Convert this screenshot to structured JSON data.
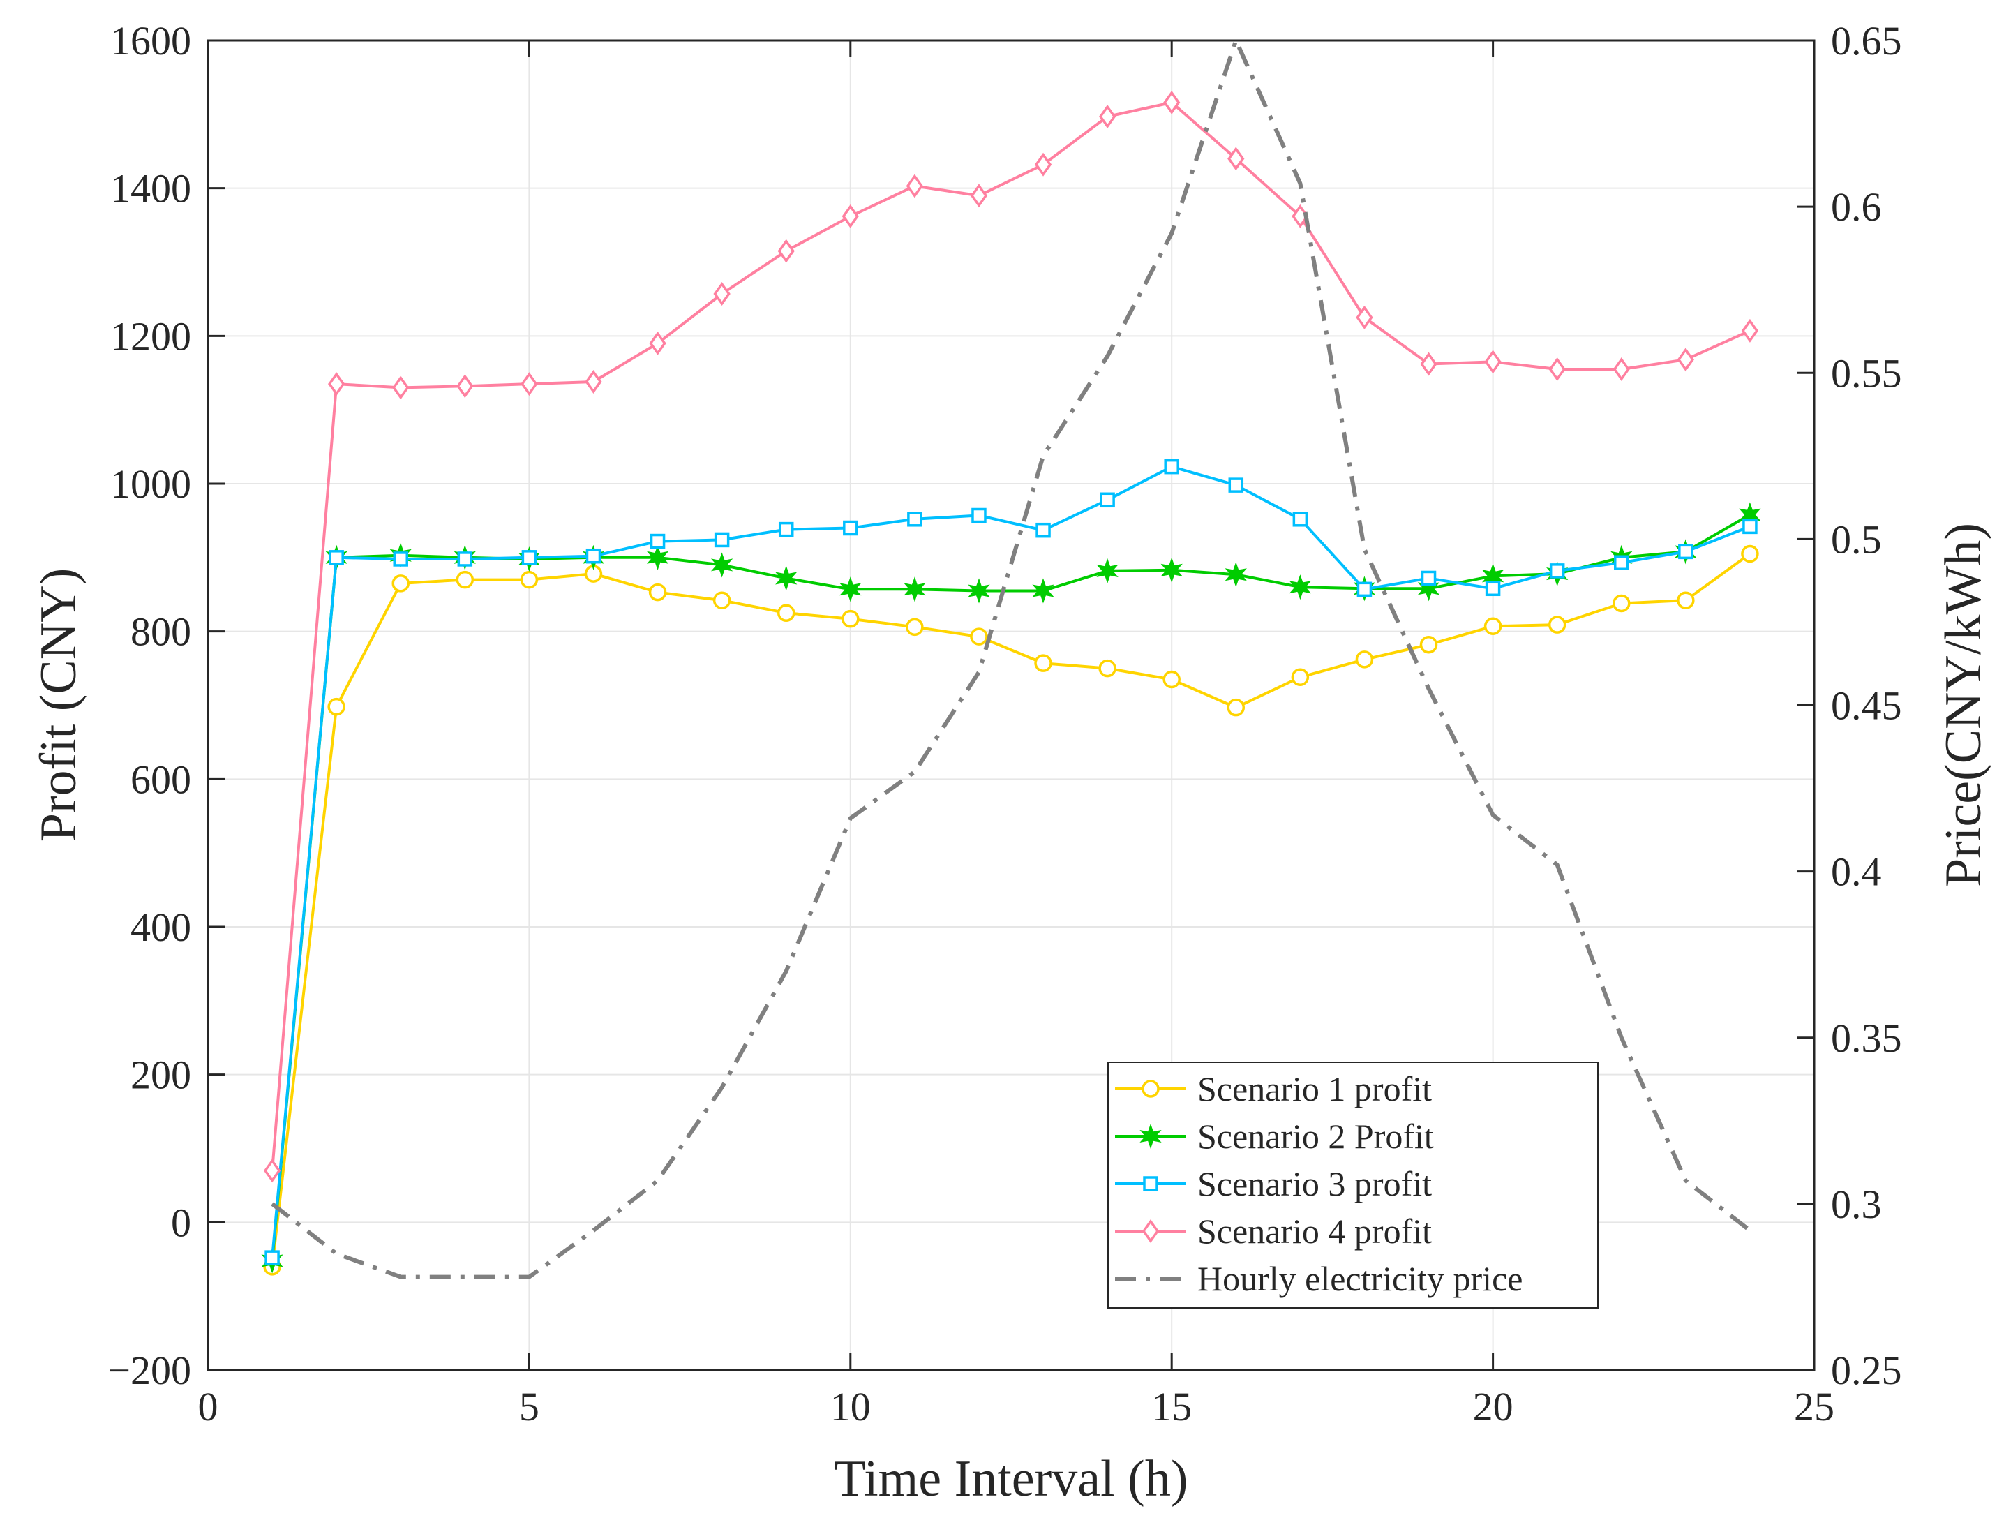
{
  "chart_data": {
    "type": "line",
    "title": "",
    "xlabel": "Time Interval (h)",
    "ylabel_left": "Profit (CNY)",
    "ylabel_right": "Price(CNY/kWh)",
    "xlim": [
      0,
      25
    ],
    "ylim_left": [
      -200,
      1600
    ],
    "ylim_right": [
      0.25,
      0.65
    ],
    "xticks": [
      "0",
      "5",
      "10",
      "15",
      "20",
      "25"
    ],
    "yticks_left": [
      "−200",
      "0",
      "200",
      "400",
      "600",
      "800",
      "1000",
      "1200",
      "1400",
      "1600"
    ],
    "yticks_right": [
      "0.25",
      "0.3",
      "0.35",
      "0.4",
      "0.45",
      "0.5",
      "0.55",
      "0.6",
      "0.65"
    ],
    "grid": true,
    "legend_position": "bottom-right",
    "x": [
      1,
      2,
      3,
      4,
      5,
      6,
      7,
      8,
      9,
      10,
      11,
      12,
      13,
      14,
      15,
      16,
      17,
      18,
      19,
      20,
      21,
      22,
      23,
      24
    ],
    "series": [
      {
        "name": "Scenario 1 profit",
        "axis": "left",
        "color": "#ffd400",
        "marker": "circle",
        "dash": "solid",
        "values": [
          -60,
          698,
          865,
          870,
          870,
          878,
          853,
          842,
          825,
          817,
          806,
          793,
          757,
          750,
          735,
          697,
          738,
          762,
          782,
          807,
          809,
          838,
          842,
          905
        ]
      },
      {
        "name": "Scenario 2 Profit",
        "axis": "left",
        "color": "#00cc00",
        "marker": "star",
        "dash": "solid",
        "values": [
          -52,
          900,
          903,
          900,
          898,
          900,
          900,
          890,
          872,
          857,
          857,
          855,
          855,
          882,
          883,
          877,
          860,
          858,
          858,
          875,
          878,
          900,
          908,
          958
        ]
      },
      {
        "name": "Scenario 3 profit",
        "axis": "left",
        "color": "#00bfff",
        "marker": "square",
        "dash": "solid",
        "values": [
          -48,
          900,
          898,
          898,
          900,
          902,
          922,
          924,
          938,
          940,
          952,
          957,
          937,
          978,
          1023,
          998,
          952,
          857,
          872,
          858,
          882,
          893,
          908,
          942
        ]
      },
      {
        "name": "Scenario 4 profit",
        "axis": "left",
        "color": "#ff80a0",
        "marker": "diamond",
        "dash": "solid",
        "values": [
          70,
          1135,
          1130,
          1132,
          1135,
          1138,
          1190,
          1257,
          1315,
          1362,
          1403,
          1390,
          1432,
          1497,
          1516,
          1440,
          1362,
          1225,
          1162,
          1165,
          1155,
          1155,
          1168,
          1207
        ]
      },
      {
        "name": "Hourly electricity price",
        "axis": "right",
        "color": "#808080",
        "marker": "none",
        "dash": "dashdot",
        "values": [
          0.3,
          0.285,
          0.278,
          0.278,
          0.278,
          0.292,
          0.307,
          0.335,
          0.37,
          0.416,
          0.43,
          0.46,
          0.525,
          0.555,
          0.592,
          0.65,
          0.607,
          0.497,
          0.455,
          0.417,
          0.402,
          0.35,
          0.307,
          0.292
        ]
      }
    ]
  }
}
